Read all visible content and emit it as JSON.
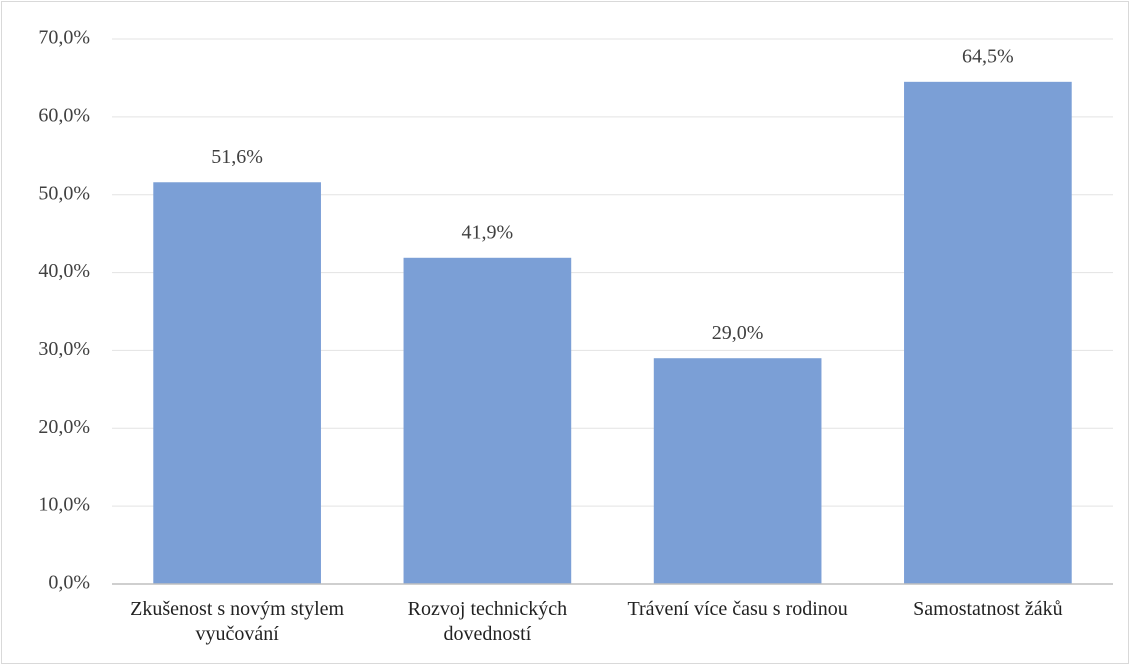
{
  "chart_data": {
    "type": "bar",
    "categories": [
      "Zkušenost s novým stylem vyučování",
      "Rozvoj technických dovedností",
      "Trávení více času s rodinou",
      "Samostatnost žáků"
    ],
    "values": [
      51.6,
      41.9,
      29.0,
      64.5
    ],
    "value_labels": [
      "51,6%",
      "41,9%",
      "29,0%",
      "64,5%"
    ],
    "color": "#7b9fd6",
    "ylim": [
      0,
      70
    ],
    "yticks": [
      {
        "value": 0,
        "label": "0,0%"
      },
      {
        "value": 10,
        "label": "10,0%"
      },
      {
        "value": 20,
        "label": "20,0%"
      },
      {
        "value": 30,
        "label": "30,0%"
      },
      {
        "value": 40,
        "label": "40,0%"
      },
      {
        "value": 50,
        "label": "50,0%"
      },
      {
        "value": 60,
        "label": "60,0%"
      },
      {
        "value": 70,
        "label": "70,0%"
      }
    ],
    "grid": true
  }
}
